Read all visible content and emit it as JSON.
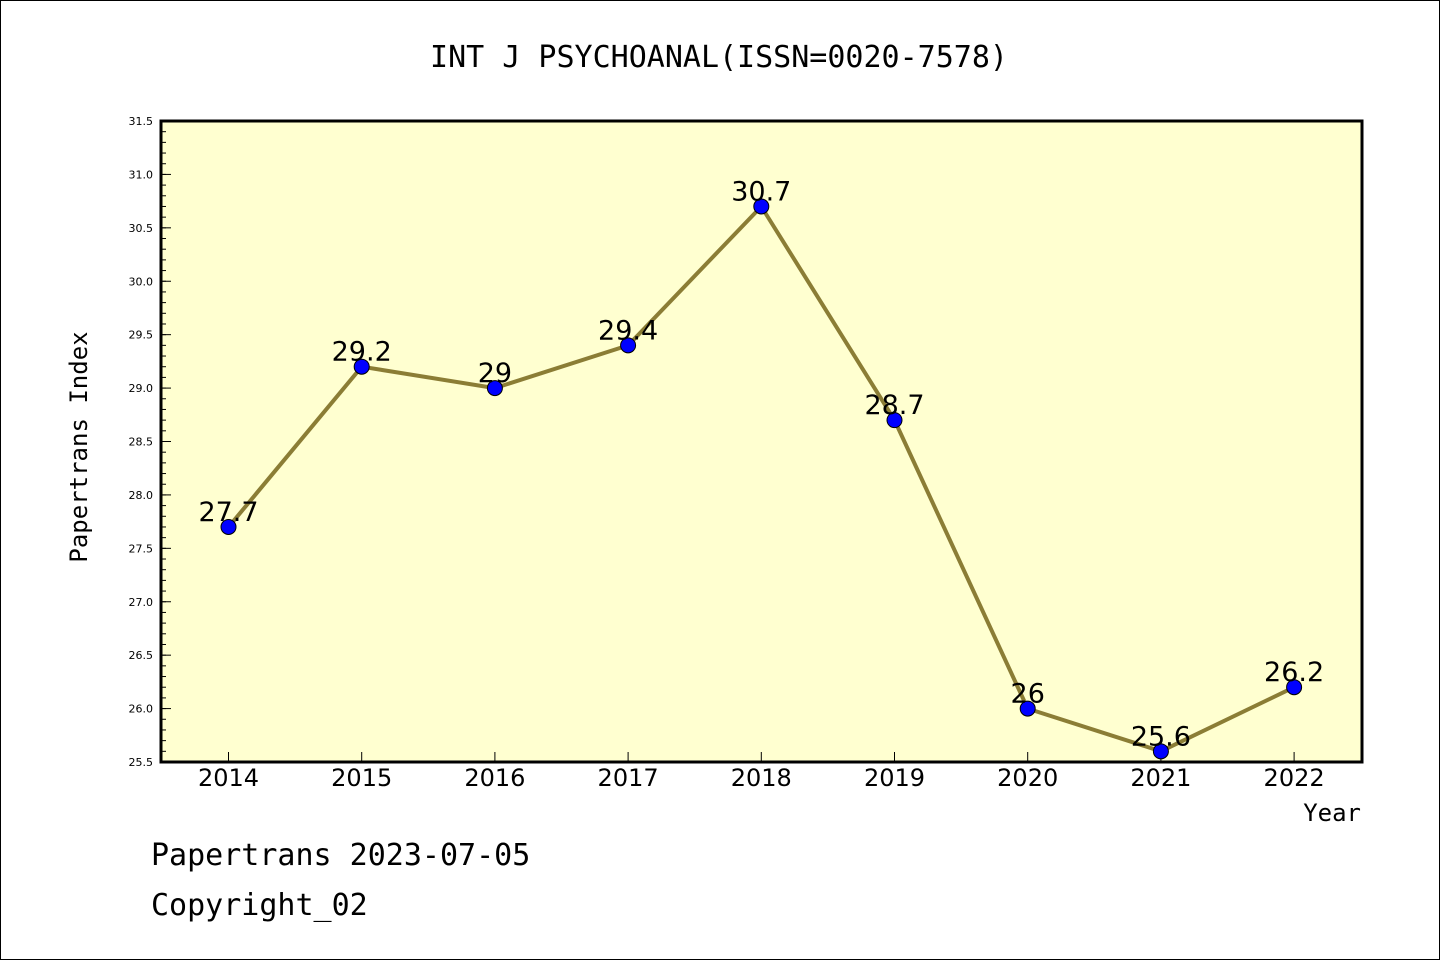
{
  "chart_data": {
    "type": "line",
    "title": "INT J PSYCHOANAL(ISSN=0020-7578)",
    "xlabel": "Year",
    "ylabel": "Papertrans Index",
    "categories": [
      "2014",
      "2015",
      "2016",
      "2017",
      "2018",
      "2019",
      "2020",
      "2021",
      "2022"
    ],
    "values": [
      27.7,
      29.2,
      29,
      29.4,
      30.7,
      28.7,
      26,
      25.6,
      26.2
    ],
    "data_labels": [
      "27.7",
      "29.2",
      "29",
      "29.4",
      "30.7",
      "28.7",
      "26",
      "25.6",
      "26.2"
    ],
    "ylim": [
      25.5,
      31.5
    ],
    "yticks": [
      "25.5",
      "26.0",
      "26.5",
      "27.0",
      "27.5",
      "28.0",
      "28.5",
      "29.0",
      "29.5",
      "30.0",
      "30.5",
      "31.0",
      "31.5"
    ],
    "grid": false,
    "legend": "none",
    "colors": {
      "plot_background": "#ffffd0",
      "line": "#8b7d35",
      "marker": "#0000ff"
    }
  },
  "footer": {
    "line1": "Papertrans 2023-07-05",
    "line2": "Copyright_02"
  }
}
